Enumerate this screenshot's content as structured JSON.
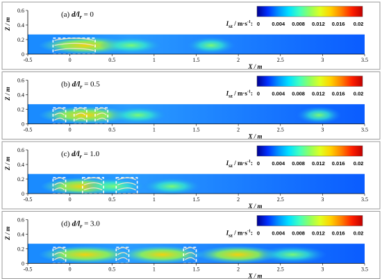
{
  "chart_data": {
    "type": "heatmap",
    "title": "",
    "colorbar": {
      "label_main": "I",
      "label_sub": "sz",
      "label_unit": " / m·s",
      "label_sup": "-1",
      "label_suffix": ":",
      "ticks": [
        "0",
        "0.004",
        "0.008",
        "0.012",
        "0.016",
        "0.02"
      ],
      "range": [
        0,
        0.02
      ],
      "colors": [
        "#00008f",
        "#0030ff",
        "#0090ff",
        "#00e0ff",
        "#40ffc0",
        "#90ff60",
        "#e0ff20",
        "#ffd000",
        "#ff8000",
        "#ff2000",
        "#c00000"
      ]
    },
    "xlabel": "X / m",
    "ylabel": "Z / m",
    "xlim": [
      -0.5,
      3.5
    ],
    "ylim": [
      0,
      0.6
    ],
    "xticks": [
      "-0.5",
      "0",
      "0.5",
      "1",
      "1.5",
      "2",
      "2.5",
      "3",
      "3.5"
    ],
    "yticks": [
      "0",
      "0.2",
      "0.4",
      "0.6"
    ],
    "flow_depth": 0.27,
    "panels": [
      {
        "label_prefix": "(a) ",
        "label_var": "d/l",
        "label_sub": "r",
        "label_value": " = 0",
        "patches": [
          [
            -0.2,
            0.3
          ]
        ],
        "hotspots": [
          {
            "x": -0.15,
            "z": 0.12,
            "level": 0.014
          },
          {
            "x": 0.5,
            "z": 0.12,
            "level": 0.008
          },
          {
            "x": 1.5,
            "z": 0.12,
            "level": 0.005
          }
        ]
      },
      {
        "label_prefix": "(b) ",
        "label_var": "d/l",
        "label_sub": "r",
        "label_value": " = 0.5",
        "patches": [
          [
            -0.2,
            -0.05
          ],
          [
            0.05,
            0.2
          ],
          [
            0.3,
            0.45
          ]
        ],
        "hotspots": [
          {
            "x": -0.15,
            "z": 0.12,
            "level": 0.014
          },
          {
            "x": 0.6,
            "z": 0.12,
            "level": 0.007
          },
          {
            "x": 2.8,
            "z": 0.12,
            "level": 0.004
          }
        ]
      },
      {
        "label_prefix": "(c) ",
        "label_var": "d/l",
        "label_sub": "r",
        "label_value": " = 1.0",
        "patches": [
          [
            -0.2,
            -0.05
          ],
          [
            0.15,
            0.4
          ],
          [
            0.55,
            0.8
          ]
        ],
        "hotspots": [
          {
            "x": -0.15,
            "z": 0.1,
            "level": 0.012
          },
          {
            "x": 0.3,
            "z": 0.1,
            "level": 0.008
          },
          {
            "x": 1.0,
            "z": 0.1,
            "level": 0.007
          }
        ]
      },
      {
        "label_prefix": "(d) ",
        "label_var": "d/l",
        "label_sub": "r",
        "label_value": " = 3.0",
        "patches": [
          [
            -0.2,
            -0.05
          ],
          [
            0.55,
            0.7
          ],
          [
            1.35,
            1.5
          ]
        ],
        "hotspots": [
          {
            "x": -0.15,
            "z": 0.12,
            "level": 0.014
          },
          {
            "x": 0.8,
            "z": 0.12,
            "level": 0.012
          },
          {
            "x": 1.7,
            "z": 0.12,
            "level": 0.012
          },
          {
            "x": 2.4,
            "z": 0.12,
            "level": 0.009
          }
        ]
      }
    ]
  }
}
